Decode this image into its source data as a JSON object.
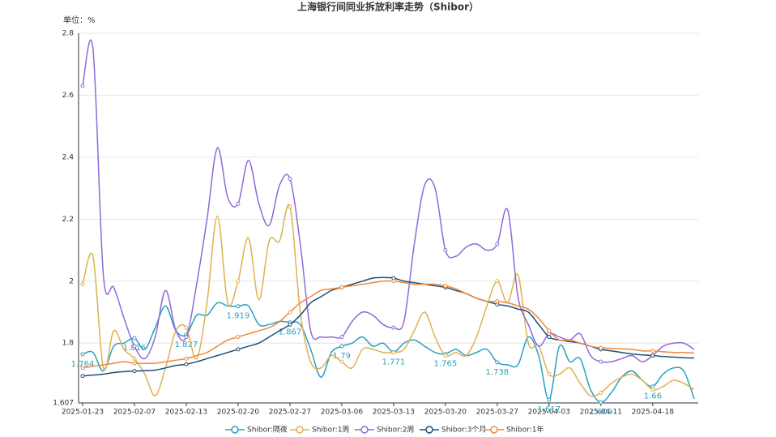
{
  "chart_data": {
    "type": "line",
    "title": "上海银行间同业拆放利率走势（Shibor）",
    "y_label": "单位：%",
    "categories": [
      "2025-01-23",
      null,
      null,
      null,
      null,
      "2025-02-07",
      null,
      null,
      null,
      null,
      "2025-02-13",
      null,
      null,
      null,
      null,
      "2025-02-20",
      null,
      null,
      null,
      null,
      "2025-02-27",
      null,
      null,
      null,
      null,
      "2025-03-06",
      null,
      null,
      null,
      null,
      "2025-03-13",
      null,
      null,
      null,
      null,
      "2025-03-20",
      null,
      null,
      null,
      null,
      "2025-03-27",
      null,
      null,
      null,
      null,
      "2025-04-03",
      null,
      null,
      null,
      null,
      "2025-04-11",
      null,
      null,
      null,
      null,
      "2025-04-18",
      null,
      null,
      null,
      null
    ],
    "series": [
      {
        "name": "Shibor:隔夜",
        "color": "#2a9fc0",
        "values": [
          1.764,
          1.77,
          1.71,
          1.79,
          1.8,
          1.816,
          1.78,
          1.85,
          1.92,
          1.84,
          1.827,
          1.89,
          1.89,
          1.93,
          1.92,
          1.919,
          1.92,
          1.86,
          1.86,
          1.87,
          1.867,
          1.86,
          1.78,
          1.69,
          1.77,
          1.79,
          1.8,
          1.82,
          1.79,
          1.8,
          1.771,
          1.8,
          1.81,
          1.79,
          1.77,
          1.765,
          1.78,
          1.76,
          1.77,
          1.78,
          1.738,
          1.73,
          1.73,
          1.82,
          1.76,
          1.617,
          1.79,
          1.74,
          1.75,
          1.65,
          1.609,
          1.64,
          1.69,
          1.71,
          1.68,
          1.66,
          1.7,
          1.72,
          1.71,
          1.62
        ]
      },
      {
        "name": "Shibor:1周",
        "color": "#e0b050",
        "values": [
          1.99,
          2.08,
          1.72,
          1.84,
          1.78,
          1.75,
          1.7,
          1.63,
          1.72,
          1.84,
          1.85,
          1.75,
          1.93,
          2.21,
          1.93,
          2.0,
          2.14,
          1.94,
          2.13,
          2.13,
          2.24,
          1.9,
          1.74,
          1.72,
          1.76,
          1.74,
          1.72,
          1.78,
          1.78,
          1.77,
          1.77,
          1.78,
          1.84,
          1.9,
          1.82,
          1.76,
          1.77,
          1.76,
          1.82,
          1.92,
          2.0,
          1.93,
          2.02,
          1.8,
          1.79,
          1.7,
          1.7,
          1.72,
          1.67,
          1.63,
          1.64,
          1.67,
          1.69,
          1.7,
          1.68,
          1.65,
          1.66,
          1.68,
          1.67,
          1.65
        ]
      },
      {
        "name": "Shibor:2周",
        "color": "#8e6ad8",
        "values": [
          2.63,
          2.75,
          2.02,
          1.98,
          1.88,
          1.79,
          1.75,
          1.82,
          1.97,
          1.84,
          1.82,
          1.99,
          2.2,
          2.43,
          2.27,
          2.25,
          2.39,
          2.25,
          2.18,
          2.31,
          2.33,
          2.12,
          1.84,
          1.82,
          1.82,
          1.82,
          1.87,
          1.9,
          1.89,
          1.86,
          1.85,
          1.87,
          2.12,
          2.31,
          2.3,
          2.1,
          2.08,
          2.11,
          2.12,
          2.1,
          2.12,
          2.23,
          1.95,
          1.86,
          1.79,
          1.83,
          1.82,
          1.81,
          1.83,
          1.76,
          1.74,
          1.74,
          1.75,
          1.76,
          1.74,
          1.76,
          1.79,
          1.8,
          1.8,
          1.78
        ]
      },
      {
        "name": "Shibor:3个月",
        "color": "#1d4e7a",
        "values": [
          1.694,
          1.697,
          1.7,
          1.705,
          1.708,
          1.71,
          1.711,
          1.713,
          1.72,
          1.728,
          1.732,
          1.74,
          1.75,
          1.76,
          1.77,
          1.78,
          1.79,
          1.8,
          1.82,
          1.84,
          1.86,
          1.89,
          1.93,
          1.95,
          1.97,
          1.98,
          1.99,
          2.0,
          2.01,
          2.012,
          2.01,
          2.0,
          1.995,
          1.99,
          1.985,
          1.98,
          1.97,
          1.96,
          1.945,
          1.935,
          1.925,
          1.92,
          1.91,
          1.9,
          1.86,
          1.82,
          1.81,
          1.805,
          1.8,
          1.79,
          1.78,
          1.775,
          1.77,
          1.765,
          1.762,
          1.76,
          1.757,
          1.755,
          1.753,
          1.752
        ]
      },
      {
        "name": "Shibor:1年",
        "color": "#ee8a3a",
        "values": [
          1.72,
          1.725,
          1.73,
          1.735,
          1.74,
          1.735,
          1.735,
          1.735,
          1.74,
          1.745,
          1.75,
          1.76,
          1.77,
          1.79,
          1.81,
          1.82,
          1.83,
          1.84,
          1.85,
          1.87,
          1.9,
          1.93,
          1.95,
          1.97,
          1.975,
          1.98,
          1.985,
          1.99,
          1.995,
          2.0,
          2.0,
          1.995,
          1.99,
          1.99,
          1.99,
          1.985,
          1.975,
          1.96,
          1.945,
          1.935,
          1.935,
          1.93,
          1.92,
          1.91,
          1.88,
          1.84,
          1.81,
          1.81,
          1.8,
          1.79,
          1.785,
          1.783,
          1.782,
          1.78,
          1.775,
          1.775,
          1.772,
          1.77,
          1.77,
          1.768
        ]
      }
    ],
    "ylim": [
      1.607,
      2.8
    ],
    "yticks": [
      1.607,
      1.8,
      2,
      2.2,
      2.4,
      2.6,
      2.8
    ],
    "grid": true
  }
}
